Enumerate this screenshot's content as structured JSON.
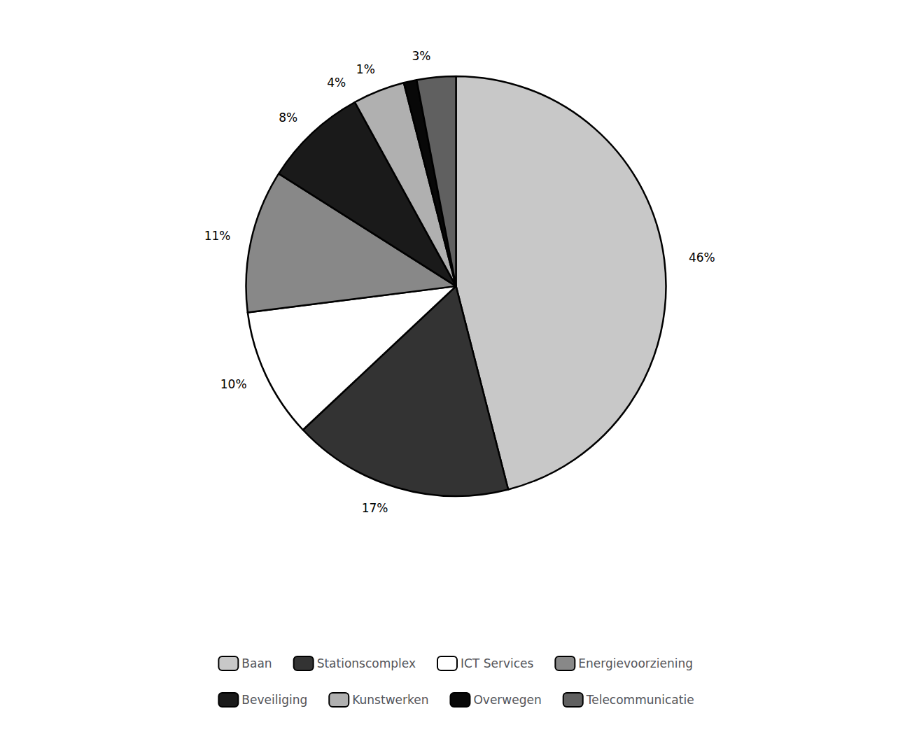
{
  "chart_data": {
    "type": "pie",
    "categories": [
      "Baan",
      "Stationscomplex",
      "ICT Services",
      "Energievoorziening",
      "Beveiliging",
      "Kunstwerken",
      "Overwegen",
      "Telecommunicatie"
    ],
    "values": [
      46,
      17,
      10,
      11,
      8,
      4,
      1,
      3
    ],
    "value_labels": [
      "46%",
      "17%",
      "10%",
      "11%",
      "8%",
      "4%",
      "1%",
      "3%"
    ],
    "colors": [
      "#c8c8c8",
      "#333333",
      "#ffffff",
      "#888888",
      "#1a1a1a",
      "#b0b0b0",
      "#080808",
      "#606060"
    ],
    "data_labels": true,
    "legend": "bottom"
  }
}
